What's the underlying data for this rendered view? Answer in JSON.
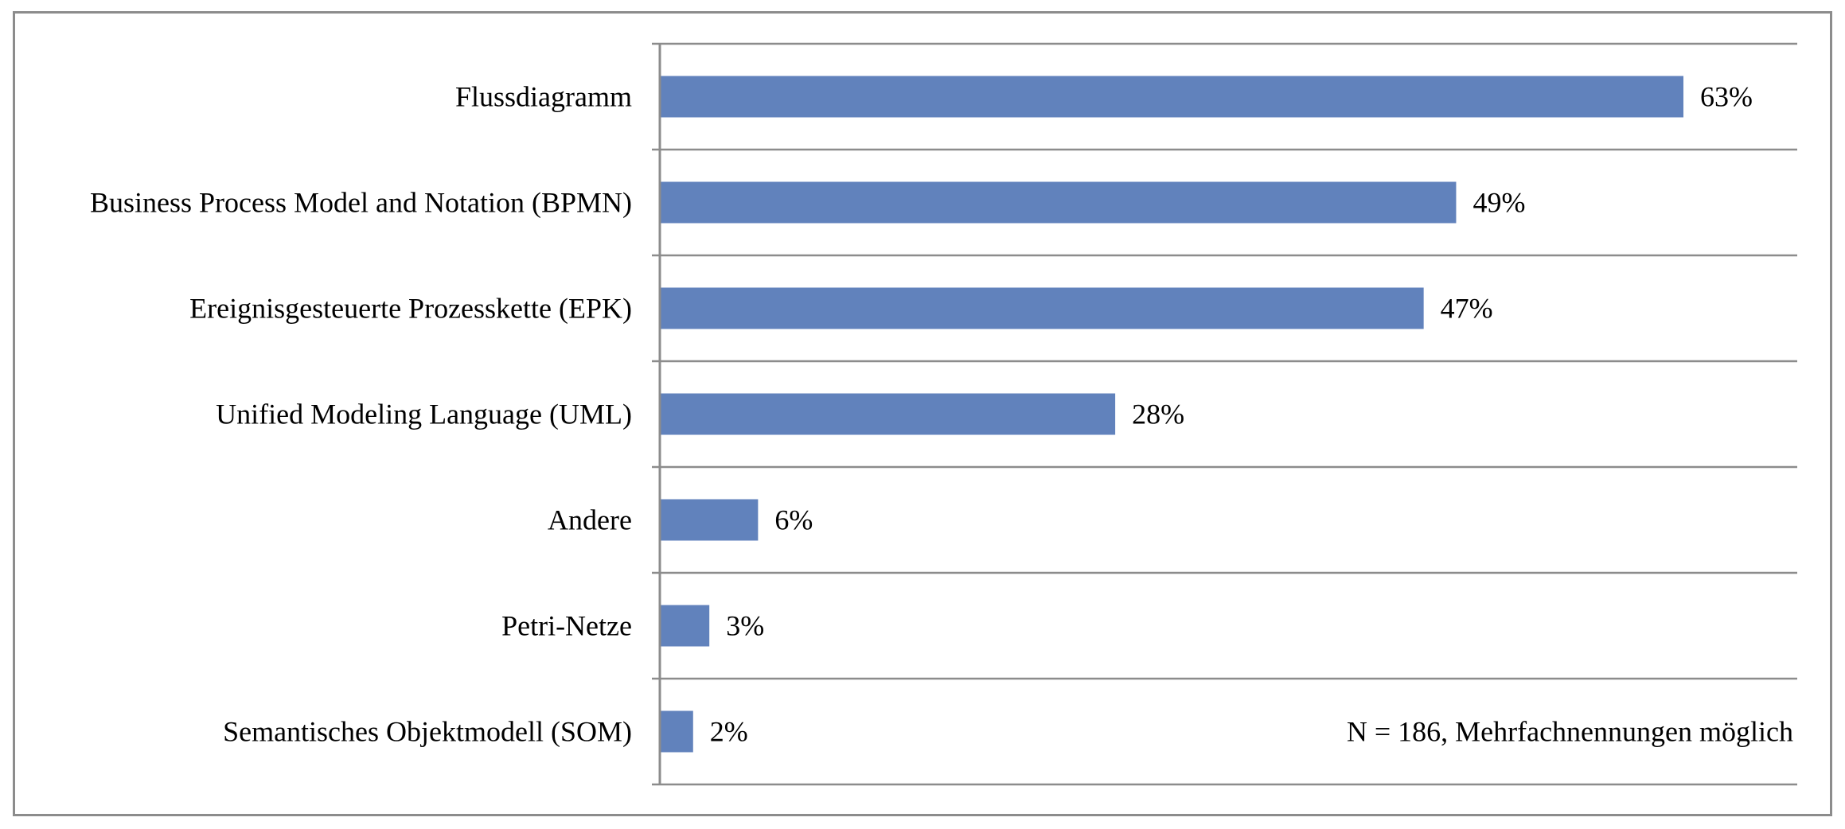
{
  "chart_data": {
    "type": "bar",
    "orientation": "horizontal",
    "categories": [
      "Flussdiagramm",
      "Business Process Model and Notation (BPMN)",
      "Ereignisgesteuerte Prozesskette (EPK)",
      "Unified Modeling Language (UML)",
      "Andere",
      "Petri-Netze",
      "Semantisches Objektmodell (SOM)"
    ],
    "values": [
      63,
      49,
      47,
      28,
      6,
      3,
      2
    ],
    "value_labels": [
      "63%",
      "49%",
      "47%",
      "28%",
      "6%",
      "3%",
      "2%"
    ],
    "xlim": [
      0,
      70
    ],
    "grid": true,
    "annotation": "N = 186, Mehrfachnennungen möglich",
    "colors": {
      "bar": "#6182bc",
      "grid": "#8c8c8c",
      "axis": "#8c8c8c",
      "text": "#000000"
    }
  }
}
